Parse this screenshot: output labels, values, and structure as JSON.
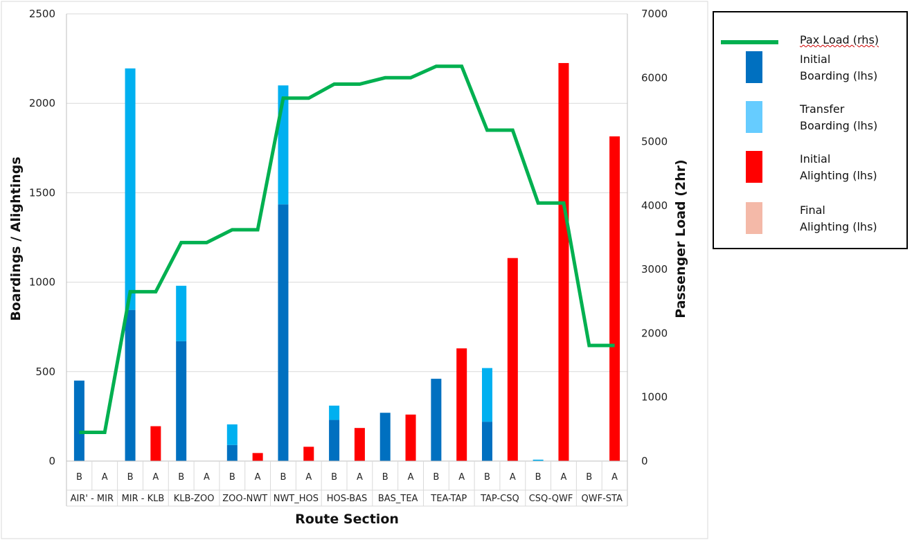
{
  "chart_data": {
    "type": "bar",
    "title": "",
    "xlabel": "Route Section",
    "ylabel": "Boardings / Alightings",
    "y2label": "Passenger Load (2hr)",
    "ylim": [
      0,
      2500
    ],
    "y2lim": [
      0,
      7000
    ],
    "yticks": [
      "0",
      "500",
      "1000",
      "1500",
      "2000",
      "2500"
    ],
    "y2ticks": [
      "0",
      "1000",
      "2000",
      "3000",
      "4000",
      "5000",
      "6000",
      "7000"
    ],
    "sections": [
      "AIR' - MIR",
      "MIR - KLB",
      "KLB-ZOO",
      "ZOO-NWT",
      "NWT_HOS",
      "HOS-BAS",
      "BAS_TEA",
      "TEA-TAP",
      "TAP-CSQ",
      "CSQ-QWF",
      "QWF-STA"
    ],
    "categories": [
      "B",
      "A",
      "B",
      "A",
      "B",
      "A",
      "B",
      "A",
      "B",
      "A",
      "B",
      "A",
      "B",
      "A",
      "B",
      "A",
      "B",
      "A",
      "B",
      "A",
      "B",
      "A"
    ],
    "series": [
      {
        "name": "Initial Boarding (lhs)",
        "color": "#0070C0",
        "values": [
          450,
          0,
          845,
          0,
          670,
          0,
          90,
          0,
          1435,
          0,
          230,
          0,
          270,
          0,
          460,
          0,
          220,
          0,
          0,
          0,
          0,
          0
        ]
      },
      {
        "name": "Transfer Boarding (lhs)",
        "color": "#00B0F0",
        "values": [
          0,
          0,
          1350,
          0,
          310,
          0,
          115,
          0,
          665,
          0,
          80,
          0,
          0,
          0,
          0,
          0,
          300,
          0,
          8,
          0,
          0,
          0
        ]
      },
      {
        "name": "Initial Alighting (lhs)",
        "color": "#FF0000",
        "values": [
          0,
          0,
          0,
          195,
          0,
          0,
          0,
          45,
          0,
          80,
          0,
          185,
          0,
          260,
          0,
          630,
          0,
          1135,
          0,
          2225,
          0,
          1815
        ]
      },
      {
        "name": "Final Alighting (lhs)",
        "color": "#F4B9A8",
        "values": [
          0,
          0,
          0,
          0,
          0,
          0,
          0,
          0,
          0,
          0,
          0,
          0,
          0,
          0,
          0,
          0,
          0,
          0,
          0,
          0,
          0,
          0
        ]
      }
    ],
    "line": {
      "name": "Pax Load (rhs)",
      "color": "#00B050",
      "values": [
        450,
        450,
        2650,
        2650,
        3420,
        3420,
        3620,
        3620,
        5680,
        5680,
        5900,
        5900,
        6000,
        6000,
        6180,
        6180,
        5180,
        5180,
        4040,
        4040,
        1810,
        1810
      ]
    },
    "grid": true,
    "legend_position": "right"
  },
  "legend": {
    "pax_load": [
      "Pax Load (rhs)"
    ],
    "initial_boarding": [
      "Initial",
      "Boarding (lhs)"
    ],
    "transfer_boarding": [
      "Transfer",
      "Boarding (lhs)"
    ],
    "initial_alighting": [
      "Initial",
      "Alighting (lhs)"
    ],
    "final_alighting": [
      "Final",
      "Alighting (lhs)"
    ]
  }
}
